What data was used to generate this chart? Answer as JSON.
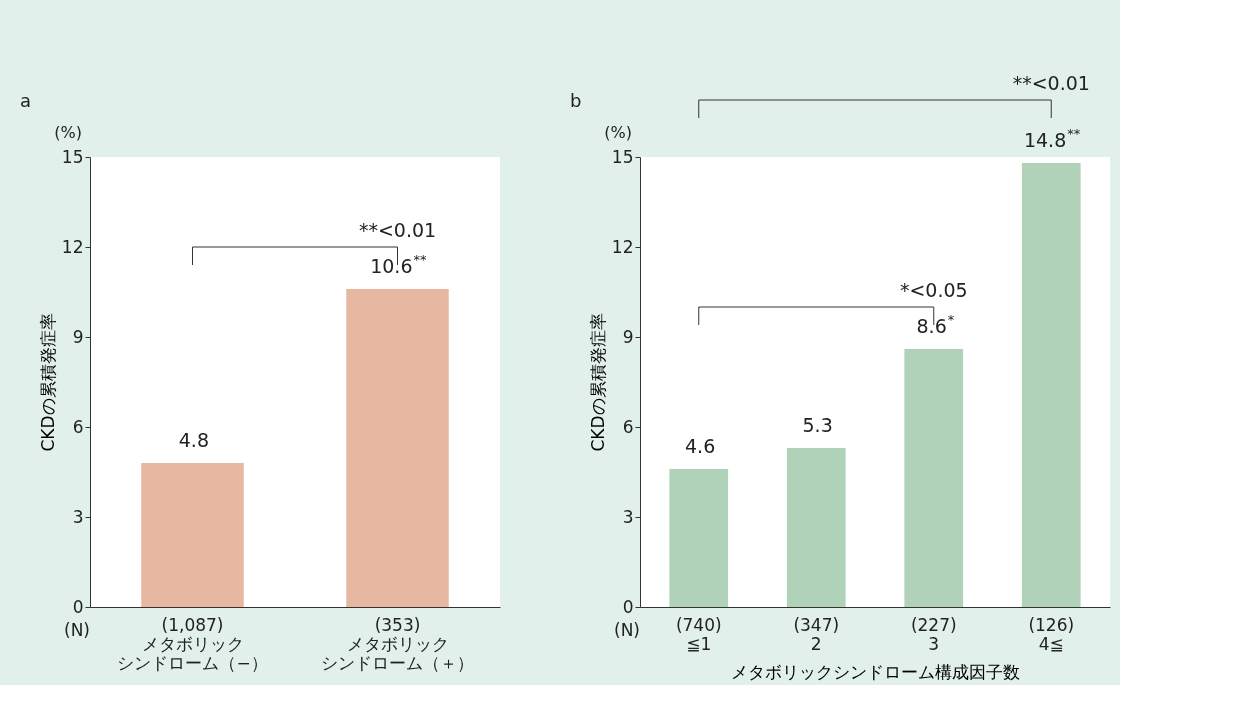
{
  "chart_data": [
    {
      "type": "bar",
      "title": "a",
      "ylabel": "CKDの累積発症率",
      "categories": [
        "(1,087)\nメタボリックシンドローム（−）",
        "(353)\nメタボリックシンドローム（＋）"
      ],
      "values": [
        4.8,
        10.6
      ],
      "color": "#e6b8a1",
      "value_labels": [
        "4.8",
        "10.6$^{**}$"
      ],
      "ylim": [
        0,
        15
      ],
      "yticks": [
        0,
        3,
        6,
        9,
        12,
        15
      ],
      "grid": false,
      "annotations": [
        "(%)",
        "(N)",
        "**<0.01"
      ]
    },
    {
      "type": "bar",
      "title": "b",
      "ylabel": "CKDの累積発症率",
      "xlabel": "メタボリックシンドローム構成因子数",
      "categories": [
        "(740)\n≦1",
        "(347)\n2",
        "(227)\n3",
        "(126)\n4≦"
      ],
      "values": [
        4.6,
        5.3,
        8.6,
        14.8
      ],
      "color": "#b0d2b8",
      "value_labels": [
        "4.6",
        "5.3",
        "8.6$^{*}$",
        "14.8$^{**}$"
      ],
      "ylim": [
        0,
        15
      ],
      "yticks": [
        0,
        3,
        6,
        9,
        12,
        15
      ],
      "grid": false,
      "annotations": [
        "(%)",
        "(N)",
        "*<0.05",
        "**<0.01"
      ]
    }
  ]
}
